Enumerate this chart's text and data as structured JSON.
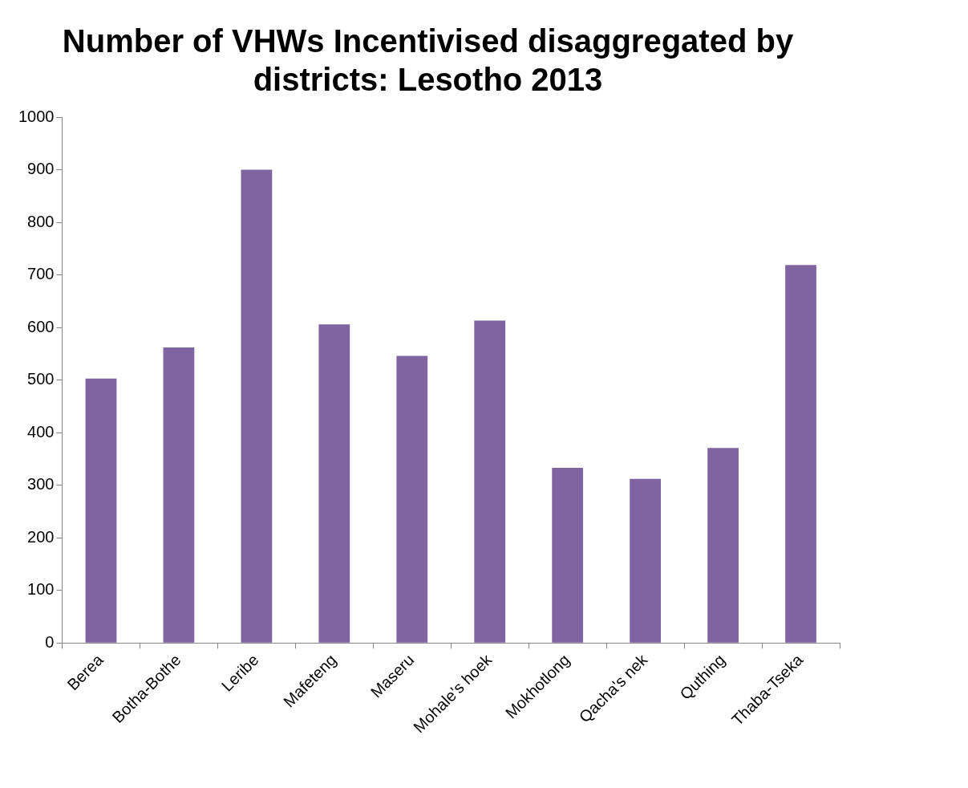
{
  "chart_data": {
    "type": "bar",
    "title": "Number of VHWs Incentivised disaggregated by districts: Lesotho 2013",
    "categories": [
      "Berea",
      "Botha-Bothe",
      "Leribe",
      "Mafeteng",
      "Maseru",
      "Mohale's hoek",
      "Mokhotlong",
      "Qacha's nek",
      "Quthing",
      "Thaba-Tseka"
    ],
    "values": [
      503,
      562,
      900,
      606,
      546,
      613,
      333,
      312,
      371,
      719
    ],
    "color": "#8064a2",
    "ylim": [
      0,
      1000
    ],
    "yticks": [
      0,
      100,
      200,
      300,
      400,
      500,
      600,
      700,
      800,
      900,
      1000
    ],
    "grid": false,
    "legend": false
  }
}
